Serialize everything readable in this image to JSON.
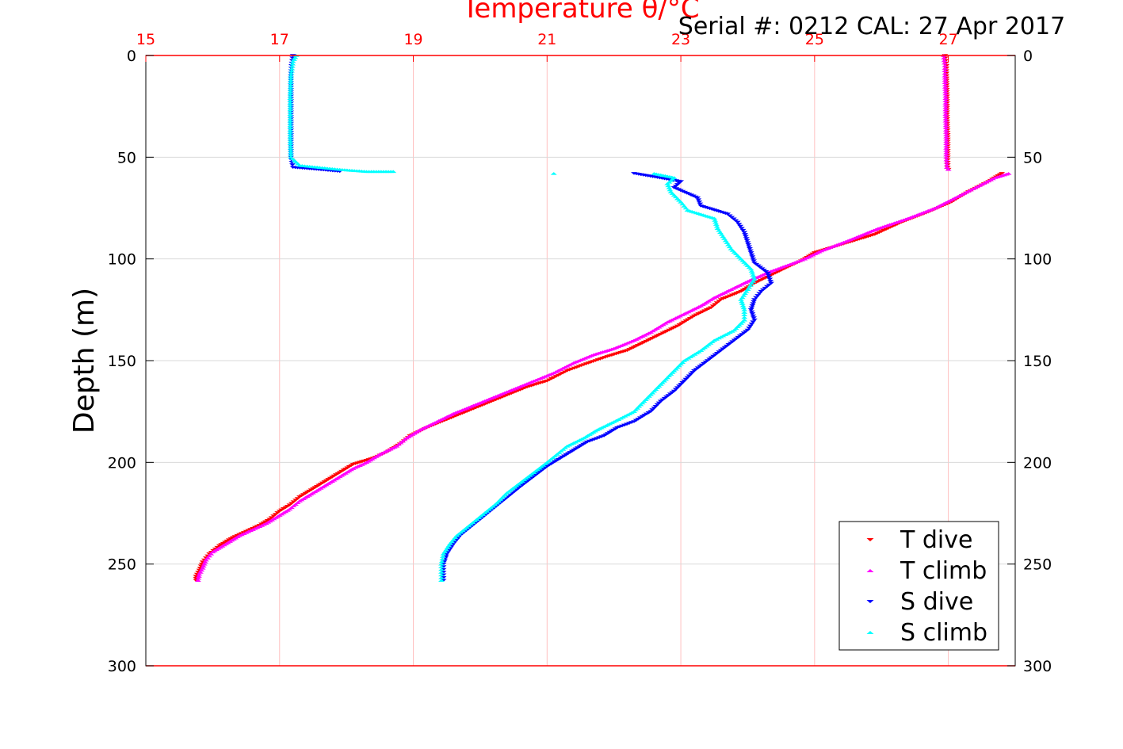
{
  "chart_data": {
    "type": "scatter",
    "title": "Temperature θ/°C",
    "subtitle": "Serial #: 0212  CAL: 27 Apr 2017",
    "xlabel": "Temperature θ/°C",
    "ylabel": "Depth (m)",
    "xlim": [
      15,
      28
    ],
    "ylim": [
      0,
      300
    ],
    "y_reversed": true,
    "x_ticks": [
      "15",
      "17",
      "19",
      "21",
      "23",
      "25",
      "27"
    ],
    "y_ticks": [
      "0",
      "50",
      "100",
      "150",
      "200",
      "250",
      "300"
    ],
    "grid": true,
    "legend_position": "bottom-right",
    "colors": {
      "t_axis": "#ff0000",
      "t_grid": "#ffc0c0",
      "y_grid": "#d9d9d9",
      "T dive": "#ff0000",
      "T climb": "#ff00ff",
      "S dive": "#0000ff",
      "S climb": "#00ffff"
    },
    "series": [
      {
        "name": "T dive",
        "marker": "triangle-down",
        "points": [
          [
            26.95,
            0
          ],
          [
            26.97,
            5
          ],
          [
            26.97,
            10
          ],
          [
            26.98,
            20
          ],
          [
            26.98,
            30
          ],
          [
            26.99,
            40
          ],
          [
            26.99,
            50
          ],
          [
            26.99,
            55
          ],
          [
            27.0,
            56
          ],
          [
            27.8,
            58
          ],
          [
            27.6,
            62
          ],
          [
            27.3,
            67
          ],
          [
            27.05,
            72
          ],
          [
            26.7,
            77
          ],
          [
            26.3,
            82
          ],
          [
            25.9,
            88
          ],
          [
            25.4,
            93
          ],
          [
            25.0,
            97
          ],
          [
            24.8,
            101
          ],
          [
            24.6,
            104
          ],
          [
            24.35,
            108
          ],
          [
            24.1,
            112
          ],
          [
            23.9,
            116
          ],
          [
            23.6,
            120
          ],
          [
            23.45,
            124
          ],
          [
            23.2,
            128
          ],
          [
            22.95,
            133
          ],
          [
            22.7,
            137
          ],
          [
            22.45,
            141
          ],
          [
            22.2,
            145
          ],
          [
            21.9,
            148
          ],
          [
            21.55,
            152
          ],
          [
            21.3,
            155
          ],
          [
            21.0,
            160
          ],
          [
            20.7,
            163
          ],
          [
            20.4,
            167
          ],
          [
            20.1,
            171
          ],
          [
            19.8,
            175
          ],
          [
            19.5,
            179
          ],
          [
            19.2,
            183
          ],
          [
            18.95,
            187
          ],
          [
            18.8,
            191
          ],
          [
            18.6,
            195
          ],
          [
            18.4,
            198
          ],
          [
            18.1,
            201
          ],
          [
            17.9,
            205
          ],
          [
            17.7,
            209
          ],
          [
            17.5,
            213
          ],
          [
            17.3,
            217
          ],
          [
            17.15,
            221
          ],
          [
            17.0,
            224
          ],
          [
            16.85,
            228
          ],
          [
            16.7,
            231
          ],
          [
            16.5,
            234
          ],
          [
            16.3,
            237
          ],
          [
            16.1,
            241
          ],
          [
            15.95,
            245
          ],
          [
            15.85,
            249
          ],
          [
            15.8,
            253
          ],
          [
            15.75,
            256
          ],
          [
            15.75,
            258
          ]
        ]
      },
      {
        "name": "T climb",
        "marker": "triangle-up",
        "points": [
          [
            26.93,
            0
          ],
          [
            26.95,
            5
          ],
          [
            26.95,
            10
          ],
          [
            26.96,
            20
          ],
          [
            26.96,
            30
          ],
          [
            26.97,
            40
          ],
          [
            26.97,
            50
          ],
          [
            26.98,
            55
          ],
          [
            27.0,
            56
          ],
          [
            27.9,
            58
          ],
          [
            27.7,
            60
          ],
          [
            27.4,
            65
          ],
          [
            27.1,
            70
          ],
          [
            26.8,
            75
          ],
          [
            26.4,
            80
          ],
          [
            25.95,
            85
          ],
          [
            25.5,
            91
          ],
          [
            25.1,
            96
          ],
          [
            24.85,
            100
          ],
          [
            24.6,
            103
          ],
          [
            24.35,
            106
          ],
          [
            24.0,
            111
          ],
          [
            23.75,
            115
          ],
          [
            23.5,
            119
          ],
          [
            23.3,
            123
          ],
          [
            23.05,
            127
          ],
          [
            22.8,
            131
          ],
          [
            22.55,
            136
          ],
          [
            22.3,
            140
          ],
          [
            22.0,
            144
          ],
          [
            21.7,
            147
          ],
          [
            21.4,
            151
          ],
          [
            21.1,
            156
          ],
          [
            20.8,
            160
          ],
          [
            20.5,
            164
          ],
          [
            20.2,
            168
          ],
          [
            19.9,
            172
          ],
          [
            19.6,
            176
          ],
          [
            19.35,
            180
          ],
          [
            19.1,
            184
          ],
          [
            18.9,
            188
          ],
          [
            18.75,
            192
          ],
          [
            18.5,
            196
          ],
          [
            18.3,
            200
          ],
          [
            18.1,
            203
          ],
          [
            17.9,
            207
          ],
          [
            17.7,
            211
          ],
          [
            17.5,
            215
          ],
          [
            17.3,
            219
          ],
          [
            17.15,
            223
          ],
          [
            17.0,
            226
          ],
          [
            16.8,
            230
          ],
          [
            16.6,
            233
          ],
          [
            16.4,
            236
          ],
          [
            16.2,
            240
          ],
          [
            16.0,
            244
          ],
          [
            15.9,
            248
          ],
          [
            15.85,
            252
          ],
          [
            15.8,
            255
          ],
          [
            15.78,
            258
          ]
        ]
      },
      {
        "name": "S dive",
        "marker": "triangle-down",
        "points": [
          [
            17.2,
            0
          ],
          [
            17.18,
            5
          ],
          [
            17.17,
            10
          ],
          [
            17.17,
            20
          ],
          [
            17.17,
            30
          ],
          [
            17.17,
            40
          ],
          [
            17.17,
            50
          ],
          [
            17.2,
            55
          ],
          [
            17.9,
            57
          ],
          [
            22.3,
            58
          ],
          [
            23.0,
            62
          ],
          [
            22.9,
            65
          ],
          [
            23.25,
            70
          ],
          [
            23.3,
            74
          ],
          [
            23.7,
            78
          ],
          [
            23.85,
            82
          ],
          [
            23.95,
            87
          ],
          [
            24.0,
            92
          ],
          [
            24.05,
            97
          ],
          [
            24.1,
            102
          ],
          [
            24.3,
            107
          ],
          [
            24.35,
            112
          ],
          [
            24.2,
            116
          ],
          [
            24.1,
            120
          ],
          [
            24.05,
            125
          ],
          [
            24.1,
            130
          ],
          [
            24.0,
            135
          ],
          [
            23.8,
            140
          ],
          [
            23.6,
            145
          ],
          [
            23.4,
            150
          ],
          [
            23.2,
            155
          ],
          [
            23.05,
            160
          ],
          [
            22.9,
            165
          ],
          [
            22.7,
            170
          ],
          [
            22.55,
            175
          ],
          [
            22.3,
            180
          ],
          [
            22.05,
            183
          ],
          [
            21.85,
            187
          ],
          [
            21.6,
            190
          ],
          [
            21.4,
            194
          ],
          [
            21.2,
            198
          ],
          [
            21.0,
            202
          ],
          [
            20.8,
            207
          ],
          [
            20.6,
            212
          ],
          [
            20.45,
            216
          ],
          [
            20.3,
            220
          ],
          [
            20.15,
            224
          ],
          [
            20.0,
            228
          ],
          [
            19.85,
            232
          ],
          [
            19.7,
            236
          ],
          [
            19.6,
            240
          ],
          [
            19.5,
            245
          ],
          [
            19.45,
            250
          ],
          [
            19.45,
            254
          ],
          [
            19.45,
            258
          ]
        ]
      },
      {
        "name": "S climb",
        "marker": "triangle-up",
        "points": [
          [
            17.25,
            0
          ],
          [
            17.2,
            3
          ],
          [
            17.17,
            10
          ],
          [
            17.16,
            20
          ],
          [
            17.16,
            30
          ],
          [
            17.16,
            40
          ],
          [
            17.17,
            50
          ],
          [
            17.3,
            54
          ],
          [
            17.6,
            55
          ],
          [
            17.9,
            56
          ],
          [
            18.3,
            57
          ],
          [
            18.7,
            57
          ],
          [
            21.1,
            58
          ],
          [
            22.6,
            58
          ],
          [
            22.9,
            60
          ],
          [
            22.8,
            63
          ],
          [
            22.85,
            67
          ],
          [
            23.0,
            72
          ],
          [
            23.1,
            76
          ],
          [
            23.5,
            80
          ],
          [
            23.55,
            85
          ],
          [
            23.65,
            90
          ],
          [
            23.75,
            95
          ],
          [
            23.9,
            100
          ],
          [
            24.05,
            105
          ],
          [
            24.1,
            110
          ],
          [
            24.0,
            115
          ],
          [
            23.9,
            120
          ],
          [
            23.95,
            125
          ],
          [
            23.95,
            130
          ],
          [
            23.8,
            135
          ],
          [
            23.5,
            140
          ],
          [
            23.3,
            145
          ],
          [
            23.05,
            150
          ],
          [
            22.9,
            155
          ],
          [
            22.75,
            160
          ],
          [
            22.6,
            165
          ],
          [
            22.45,
            170
          ],
          [
            22.3,
            175
          ],
          [
            22.0,
            180
          ],
          [
            21.75,
            184
          ],
          [
            21.55,
            188
          ],
          [
            21.3,
            192
          ],
          [
            21.15,
            196
          ],
          [
            21.0,
            200
          ],
          [
            20.8,
            205
          ],
          [
            20.6,
            210
          ],
          [
            20.4,
            215
          ],
          [
            20.25,
            220
          ],
          [
            20.1,
            224
          ],
          [
            19.95,
            228
          ],
          [
            19.8,
            232
          ],
          [
            19.65,
            236
          ],
          [
            19.55,
            240
          ],
          [
            19.45,
            245
          ],
          [
            19.42,
            250
          ],
          [
            19.42,
            254
          ],
          [
            19.42,
            258
          ]
        ]
      }
    ]
  }
}
